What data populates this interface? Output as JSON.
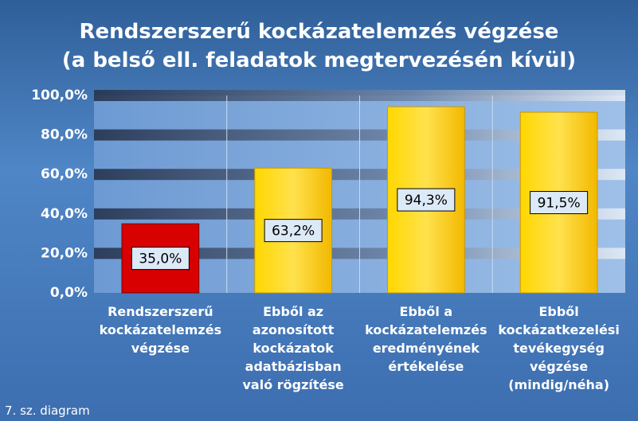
{
  "chart_data": {
    "type": "bar",
    "title": "Rendszerszerű kockázatelemzés végzése\n(a belső ell. feladatok megtervezésén kívül)",
    "categories": [
      "Rendszerszerű\nkockázatelemzés\nvégzése",
      "Ebből az\nazonosított\nkockázatok\nadatbázisban\nvaló rögzítése",
      "Ebből a\nkockázatelemzés\neredményének\nértékelése",
      "Ebből\nkockázatkezelési\ntevékegység\nvégzése\n(mindig/néha)"
    ],
    "values": [
      35.0,
      63.2,
      94.3,
      91.5
    ],
    "value_labels": [
      "35,0%",
      "63,2%",
      "94,3%",
      "91,5%"
    ],
    "colors": [
      "#d80000",
      "#ffcc00",
      "#ffcc00",
      "#ffcc00"
    ],
    "ylim": [
      0,
      100
    ],
    "yticks": [
      {
        "value": 0,
        "label": "0,0%"
      },
      {
        "value": 20,
        "label": "20,0%"
      },
      {
        "value": 40,
        "label": "40,0%"
      },
      {
        "value": 60,
        "label": "60,0%"
      },
      {
        "value": 80,
        "label": "80,0%"
      },
      {
        "value": 100,
        "label": "100,0%"
      }
    ],
    "grid": true,
    "annotation": "7. sz. diagram"
  }
}
